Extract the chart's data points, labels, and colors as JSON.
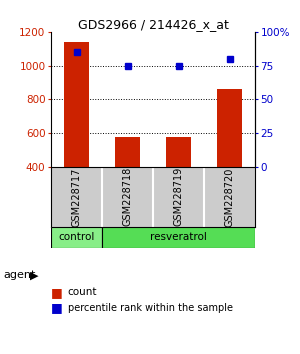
{
  "title": "GDS2966 / 214426_x_at",
  "samples": [
    "GSM228717",
    "GSM228718",
    "GSM228719",
    "GSM228720"
  ],
  "counts": [
    1140,
    575,
    575,
    860
  ],
  "percentiles": [
    85,
    75,
    75,
    80
  ],
  "ylim_left": [
    400,
    1200
  ],
  "ylim_right": [
    0,
    100
  ],
  "yticks_left": [
    400,
    600,
    800,
    1000,
    1200
  ],
  "yticks_right": [
    0,
    25,
    50,
    75,
    100
  ],
  "ytick_labels_right": [
    "0",
    "25",
    "50",
    "75",
    "100%"
  ],
  "bar_color": "#cc2200",
  "dot_color": "#0000cc",
  "bar_width": 0.5,
  "group_label": "agent",
  "sample_box_color": "#cccccc",
  "background_color": "#ffffff",
  "grid_color": "#000000",
  "legend_count_label": "count",
  "legend_pct_label": "percentile rank within the sample",
  "groups_def": [
    {
      "label": "control",
      "start": 0,
      "end": 1,
      "color": "#88ee88"
    },
    {
      "label": "resveratrol",
      "start": 1,
      "end": 4,
      "color": "#55dd55"
    }
  ]
}
